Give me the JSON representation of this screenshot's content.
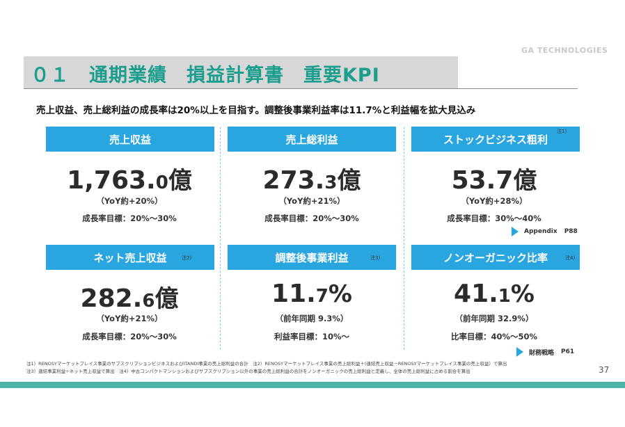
{
  "brand": {
    "logo_text": "GA TECHNOLOGIES"
  },
  "header": {
    "title": "０１　通期業績　損益計算書　重要KPI",
    "subtitle": "売上収益、売上総利益の成長率は20%以上を目指す。調整後事業利益率は11.7%と利益幅を拡大見込み"
  },
  "kpis": [
    {
      "label": "売上収益",
      "note": "",
      "value_main": "1,763.",
      "value_decimal": "0",
      "unit": "億",
      "yoy": "（YoY約+20%）",
      "target": "成長率目標：20%～30%"
    },
    {
      "label": "売上総利益",
      "note": "",
      "value_main": "273.",
      "value_decimal": "3",
      "unit": "億",
      "yoy": "（YoY約+21%）",
      "target": "成長率目標：20%～30%"
    },
    {
      "label": "ストックビジネス粗利",
      "note": "注1)",
      "value_main": "53.7",
      "value_decimal": "",
      "unit": "億",
      "yoy": "（YoY約+28%）",
      "target": "成長率目標：30%～40%"
    },
    {
      "label": "ネット売上収益",
      "note": "注2)",
      "value_main": "282.",
      "value_decimal": "6",
      "unit": "億",
      "yoy": "（YoY約+21%）",
      "target": "成長率目標：20%～30%"
    },
    {
      "label": "調整後事業利益",
      "note": "注3)",
      "value_main": "11.",
      "value_decimal": "7",
      "unit": "%",
      "yoy": "（前年同期 9.3%）",
      "target": "利益率目標：10%～"
    },
    {
      "label": "ノンオーガニック比率",
      "note": "注4)",
      "value_main": "41.",
      "value_decimal": "1",
      "unit": "%",
      "yoy": "（前年同期 32.9%）",
      "target": "比率目標：40%～50%"
    }
  ],
  "refs": {
    "appendix": {
      "label": "Appendix",
      "page": "P88"
    },
    "strategy": {
      "label": "財務戦略",
      "page": "P61"
    }
  },
  "footnotes": [
    "注1）RENOSYマーケットプレイス事業のサブスクリプションビジネスおよびITANDI事業の売上総利益の合計　注2）RENOSYマーケットプレイス事業の売上総利益＋(連結売上収益－RENOSYマーケットプレイス事業の売上収益）で算出",
    "注3）連結事業利益÷ネット売上収益で算出　注4）中古コンパクトマンションおよびサブスクリプション以外の事業の売上総利益の合計をノンオーガニックの売上総利益と定義し、全体の売上総利益に占める割合を算出"
  ],
  "page_number": "37",
  "colors": {
    "title_green": "#1b9e8e",
    "header_blue": "#29a6e0",
    "bottom_bar": "#4fb3a8"
  }
}
